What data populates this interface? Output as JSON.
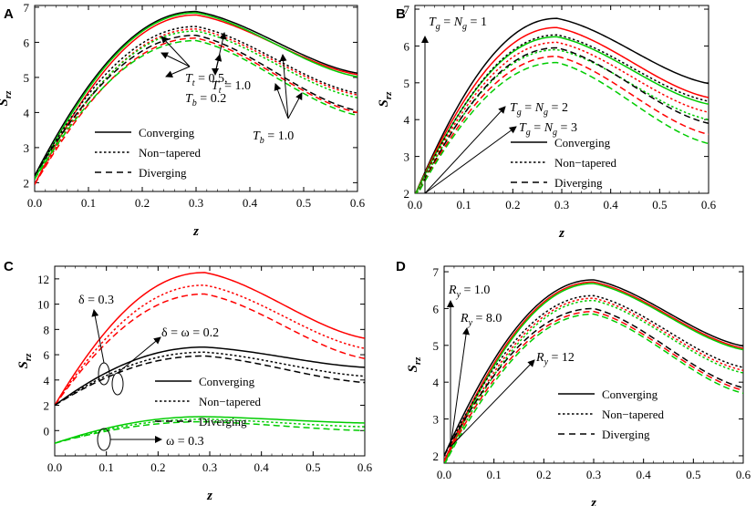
{
  "figure": {
    "colors": {
      "black": "#000000",
      "red": "#ff0000",
      "green": "#00cc00"
    }
  },
  "chart_data": [
    {
      "panel": "A",
      "type": "line",
      "xlabel": "z",
      "ylabel": "S_rz",
      "xlim": [
        0.0,
        0.6
      ],
      "ylim": [
        1.75,
        7.05
      ],
      "xticks": [
        0.0,
        0.1,
        0.2,
        0.3,
        0.4,
        0.5,
        0.6
      ],
      "yticks": [
        2,
        3,
        4,
        5,
        6,
        7
      ],
      "start_values": [
        2.2,
        2.1,
        1.95
      ],
      "peak_x": 0.3,
      "series": [
        {
          "name": "Converging, Tt=0.5, Tb=0.2",
          "color": "#000000",
          "dash": "solid",
          "start": 2.2,
          "peak": 6.88,
          "end": 5.12
        },
        {
          "name": "Converging, Tt=1.0",
          "color": "#ff0000",
          "dash": "solid",
          "start": 1.95,
          "peak": 6.78,
          "end": 5.08
        },
        {
          "name": "Converging, Tb=1.0",
          "color": "#00cc00",
          "dash": "solid",
          "start": 2.1,
          "peak": 6.84,
          "end": 5.02
        },
        {
          "name": "Non-tapered, Tt=0.5, Tb=0.2",
          "color": "#000000",
          "dash": "dot",
          "start": 2.2,
          "peak": 6.45,
          "end": 4.55
        },
        {
          "name": "Non-tapered, Tt=1.0",
          "color": "#ff0000",
          "dash": "dot",
          "start": 1.95,
          "peak": 6.38,
          "end": 4.5
        },
        {
          "name": "Non-tapered, Tb=1.0",
          "color": "#00cc00",
          "dash": "dot",
          "start": 2.1,
          "peak": 6.32,
          "end": 4.42
        },
        {
          "name": "Diverging, Tt=0.5, Tb=0.2",
          "color": "#000000",
          "dash": "dash",
          "start": 2.2,
          "peak": 6.2,
          "end": 4.05
        },
        {
          "name": "Diverging, Tt=1.0",
          "color": "#ff0000",
          "dash": "dash",
          "start": 1.95,
          "peak": 6.12,
          "end": 4.0
        },
        {
          "name": "Diverging, Tb=1.0",
          "color": "#00cc00",
          "dash": "dash",
          "start": 2.1,
          "peak": 6.05,
          "end": 3.92
        }
      ],
      "legend": [
        "Converging",
        "Non−tapered",
        "Diverging"
      ],
      "annotations": [
        "T_t = 0.5,",
        "T_b = 0.2",
        "T_t = 1.0",
        "T_b = 1.0"
      ]
    },
    {
      "panel": "B",
      "type": "line",
      "xlabel": "z",
      "ylabel": "S_rz",
      "xlim": [
        0.0,
        0.6
      ],
      "ylim": [
        2.0,
        7.1
      ],
      "xticks": [
        0.0,
        0.1,
        0.2,
        0.3,
        0.4,
        0.5,
        0.6
      ],
      "yticks": [
        2,
        3,
        4,
        5,
        6,
        7
      ],
      "peak_x": 0.29,
      "series": [
        {
          "name": "Converging, Tg=Ng=1",
          "color": "#000000",
          "dash": "solid",
          "start": 1.95,
          "peak": 6.75,
          "end": 4.98
        },
        {
          "name": "Converging, Tg=Ng=2",
          "color": "#ff0000",
          "dash": "solid",
          "start": 1.95,
          "peak": 6.5,
          "end": 4.6
        },
        {
          "name": "Converging, Tg=Ng=3",
          "color": "#00cc00",
          "dash": "solid",
          "start": 1.95,
          "peak": 6.25,
          "end": 4.42
        },
        {
          "name": "Non-tapered, Tg=Ng=1",
          "color": "#000000",
          "dash": "dot",
          "start": 1.9,
          "peak": 6.3,
          "end": 4.5
        },
        {
          "name": "Non-tapered, Tg=Ng=2",
          "color": "#ff0000",
          "dash": "dot",
          "start": 1.9,
          "peak": 6.1,
          "end": 4.2
        },
        {
          "name": "Non-tapered, Tg=Ng=3",
          "color": "#00cc00",
          "dash": "dot",
          "start": 1.9,
          "peak": 5.9,
          "end": 4.0
        },
        {
          "name": "Diverging, Tg=Ng=1",
          "color": "#000000",
          "dash": "dash",
          "start": 1.85,
          "peak": 5.95,
          "end": 3.9
        },
        {
          "name": "Diverging, Tg=Ng=2",
          "color": "#ff0000",
          "dash": "dash",
          "start": 1.85,
          "peak": 5.72,
          "end": 3.6
        },
        {
          "name": "Diverging, Tg=Ng=3",
          "color": "#00cc00",
          "dash": "dash",
          "start": 1.85,
          "peak": 5.55,
          "end": 3.35
        }
      ],
      "legend": [
        "Converging",
        "Non−tapered",
        "Diverging"
      ],
      "annotations": [
        "T_g = N_g = 1",
        "T_g = N_g = 2",
        "T_g = N_g = 3"
      ]
    },
    {
      "panel": "C",
      "type": "line",
      "xlabel": "z",
      "ylabel": "S_rz",
      "xlim": [
        0.0,
        0.6
      ],
      "ylim": [
        -2.0,
        13.0
      ],
      "xticks": [
        0.0,
        0.1,
        0.2,
        0.3,
        0.4,
        0.5,
        0.6
      ],
      "yticks": [
        0,
        2,
        4,
        6,
        8,
        10,
        12
      ],
      "peak_x": 0.29,
      "series": [
        {
          "name": "Converging, delta=0.3",
          "color": "#ff0000",
          "dash": "solid",
          "start": 2.0,
          "peak": 12.5,
          "end": 7.3
        },
        {
          "name": "Non-tapered, delta=0.3",
          "color": "#ff0000",
          "dash": "dot",
          "start": 2.0,
          "peak": 11.5,
          "end": 6.5
        },
        {
          "name": "Diverging, delta=0.3",
          "color": "#ff0000",
          "dash": "dash",
          "start": 2.0,
          "peak": 10.8,
          "end": 5.7
        },
        {
          "name": "Converging, delta=omega=0.2",
          "color": "#000000",
          "dash": "solid",
          "start": 2.0,
          "peak": 6.6,
          "end": 5.0
        },
        {
          "name": "Non-tapered, delta=omega=0.2",
          "color": "#000000",
          "dash": "dot",
          "start": 2.0,
          "peak": 6.2,
          "end": 4.3
        },
        {
          "name": "Diverging, delta=omega=0.2",
          "color": "#000000",
          "dash": "dash",
          "start": 2.0,
          "peak": 5.9,
          "end": 3.8
        },
        {
          "name": "Converging, omega=0.3",
          "color": "#00cc00",
          "dash": "solid",
          "start": -1.0,
          "peak": 1.1,
          "end": 0.6
        },
        {
          "name": "Non-tapered, omega=0.3",
          "color": "#00cc00",
          "dash": "dot",
          "start": -1.0,
          "peak": 0.9,
          "end": 0.3
        },
        {
          "name": "Diverging, omega=0.3",
          "color": "#00cc00",
          "dash": "dash",
          "start": -1.0,
          "peak": 0.7,
          "end": 0.0
        }
      ],
      "legend": [
        "Converging",
        "Non−tapered",
        "Diverging"
      ],
      "annotations": [
        "δ = 0.3",
        "δ = ω = 0.2",
        "ω = 0.3"
      ]
    },
    {
      "panel": "D",
      "type": "line",
      "xlabel": "z",
      "ylabel": "S_rz",
      "xlim": [
        0.0,
        0.6
      ],
      "ylim": [
        1.8,
        7.15
      ],
      "xticks": [
        0.0,
        0.1,
        0.2,
        0.3,
        0.4,
        0.5,
        0.6
      ],
      "yticks": [
        2,
        3,
        4,
        5,
        6,
        7
      ],
      "peak_x": 0.3,
      "series": [
        {
          "name": "Converging, Ry=1.0",
          "color": "#000000",
          "dash": "solid",
          "start": 2.0,
          "peak": 6.78,
          "end": 4.98
        },
        {
          "name": "Converging, Ry=8.0",
          "color": "#ff0000",
          "dash": "solid",
          "start": 1.85,
          "peak": 6.72,
          "end": 4.92
        },
        {
          "name": "Converging, Ry=12",
          "color": "#00cc00",
          "dash": "solid",
          "start": 1.75,
          "peak": 6.68,
          "end": 4.88
        },
        {
          "name": "Non-tapered, Ry=1.0",
          "color": "#000000",
          "dash": "dot",
          "start": 2.0,
          "peak": 6.35,
          "end": 4.4
        },
        {
          "name": "Non-tapered, Ry=8.0",
          "color": "#ff0000",
          "dash": "dot",
          "start": 1.85,
          "peak": 6.28,
          "end": 4.32
        },
        {
          "name": "Non-tapered, Ry=12",
          "color": "#00cc00",
          "dash": "dot",
          "start": 1.75,
          "peak": 6.22,
          "end": 4.25
        },
        {
          "name": "Diverging, Ry=1.0",
          "color": "#000000",
          "dash": "dash",
          "start": 2.0,
          "peak": 6.0,
          "end": 3.85
        },
        {
          "name": "Diverging, Ry=8.0",
          "color": "#ff0000",
          "dash": "dash",
          "start": 1.85,
          "peak": 5.92,
          "end": 3.78
        },
        {
          "name": "Diverging, Ry=12",
          "color": "#00cc00",
          "dash": "dash",
          "start": 1.75,
          "peak": 5.85,
          "end": 3.7
        }
      ],
      "legend": [
        "Converging",
        "Non−tapered",
        "Diverging"
      ],
      "annotations": [
        "R_y = 1.0",
        "R_y = 8.0",
        "R_y = 12"
      ]
    }
  ]
}
